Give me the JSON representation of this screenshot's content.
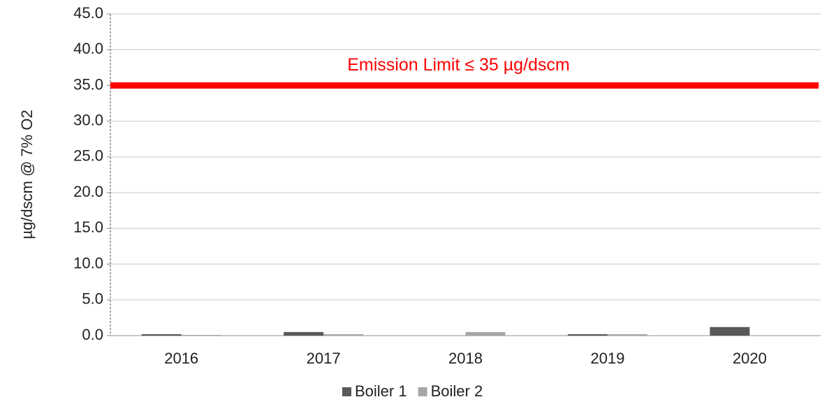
{
  "chart_data": {
    "type": "bar",
    "categories": [
      "2016",
      "2017",
      "2018",
      "2019",
      "2020"
    ],
    "series": [
      {
        "name": "Boiler 1",
        "color": "#595959",
        "values": [
          0.2,
          0.5,
          0,
          0.2,
          1.2
        ]
      },
      {
        "name": "Boiler 2",
        "color": "#a6a6a6",
        "values": [
          0.1,
          0.2,
          0.5,
          0.2,
          0
        ]
      }
    ],
    "ylabel": "µg/dscm @ 7% O2",
    "ylim": [
      0,
      45
    ],
    "yticks": [
      {
        "value": 0,
        "label": "0.0"
      },
      {
        "value": 5,
        "label": "5.0"
      },
      {
        "value": 10,
        "label": "10.0"
      },
      {
        "value": 15,
        "label": "15.0"
      },
      {
        "value": 20,
        "label": "20.0"
      },
      {
        "value": 25,
        "label": "25.0"
      },
      {
        "value": 30,
        "label": "30.0"
      },
      {
        "value": 35,
        "label": "35.0"
      },
      {
        "value": 40,
        "label": "40.0"
      },
      {
        "value": 45,
        "label": "45.0"
      }
    ],
    "grid": true,
    "limit": {
      "value": 35,
      "label": "Emission Limit ≤ 35 µg/dscm",
      "color": "#ff0000"
    },
    "legend": "bottom"
  }
}
